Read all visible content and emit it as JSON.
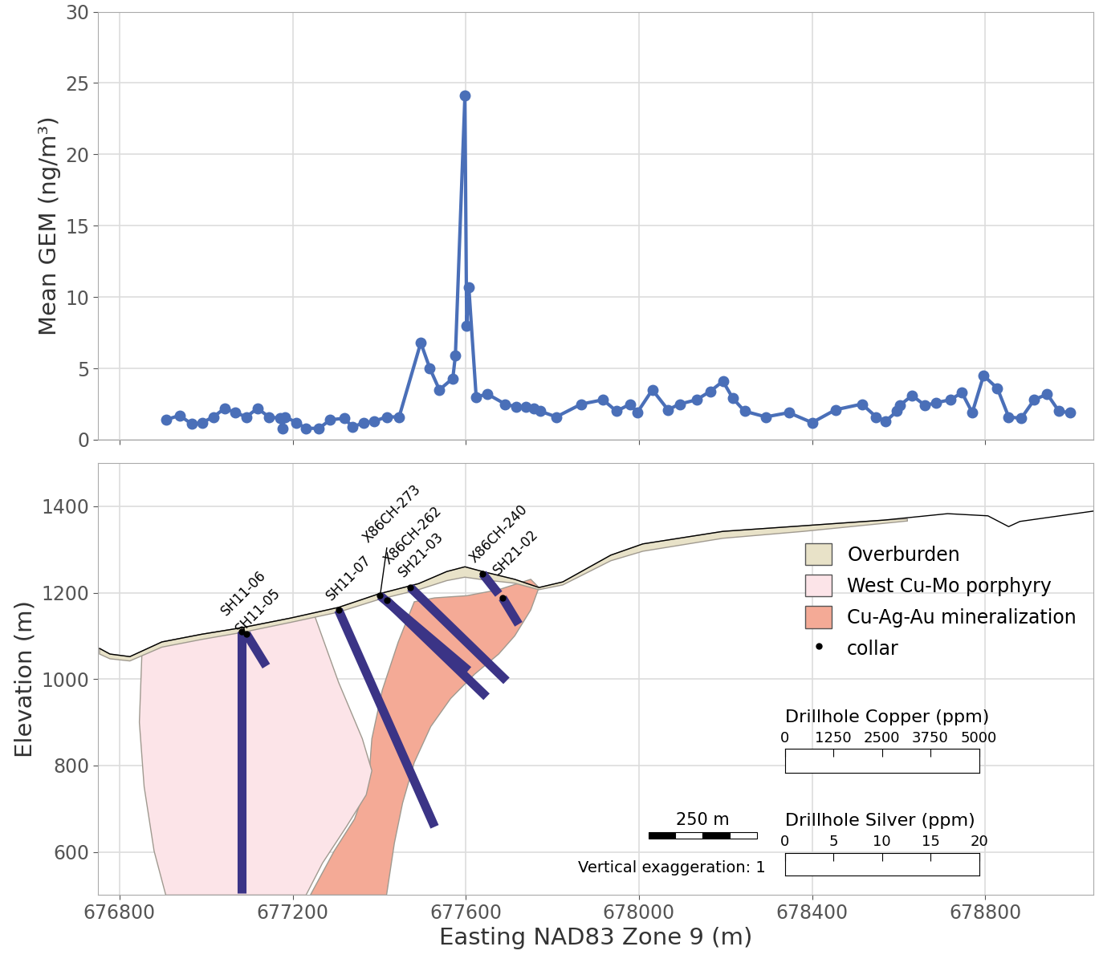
{
  "chart_data": [
    {
      "type": "line",
      "ylabel": "Mean GEM (ng/m³)",
      "x": [
        676907,
        676939,
        676967,
        676991,
        677017,
        677043,
        677068,
        677093,
        677119,
        677145,
        677172,
        677176,
        677183,
        677209,
        677231,
        677261,
        677287,
        677319,
        677339,
        677365,
        677389,
        677417,
        677446,
        677496,
        677517,
        677539,
        677570,
        677576,
        677598,
        677602,
        677607,
        677624,
        677650,
        677691,
        677717,
        677739,
        677757,
        677772,
        677809,
        677867,
        677917,
        677948,
        677980,
        677996,
        678031,
        678067,
        678094,
        678133,
        678165,
        678194,
        678217,
        678244,
        678293,
        678346,
        678400,
        678454,
        678515,
        678548,
        678570,
        678596,
        678602,
        678631,
        678661,
        678687,
        678719,
        678746,
        678770,
        678796,
        678828,
        678854,
        678883,
        678913,
        678943,
        678970,
        678996
      ],
      "values": [
        1.4,
        1.7,
        1.1,
        1.2,
        1.6,
        2.2,
        1.9,
        1.6,
        2.2,
        1.6,
        1.5,
        0.8,
        1.6,
        1.2,
        0.8,
        0.8,
        1.4,
        1.5,
        0.9,
        1.2,
        1.3,
        1.6,
        1.6,
        6.8,
        5.0,
        3.5,
        4.3,
        5.9,
        24.1,
        8.0,
        10.7,
        3.0,
        3.2,
        2.5,
        2.3,
        2.3,
        2.2,
        2.0,
        1.6,
        2.5,
        2.8,
        2.0,
        2.5,
        1.9,
        3.5,
        2.1,
        2.5,
        2.8,
        3.4,
        4.1,
        2.9,
        2.0,
        1.6,
        1.9,
        1.2,
        2.1,
        2.5,
        1.6,
        1.3,
        2.0,
        2.4,
        3.1,
        2.4,
        2.6,
        2.8,
        3.3,
        1.9,
        4.5,
        3.6,
        1.6,
        1.5,
        2.8,
        3.2,
        2.0,
        1.9
      ],
      "color": "#4a6fb8",
      "marker": "o",
      "xlim": [
        676750,
        679050
      ],
      "ylim": [
        0,
        30
      ],
      "xticks": [
        676800,
        677200,
        677600,
        678000,
        678400,
        678800
      ],
      "yticks": [
        0,
        5,
        10,
        15,
        20,
        25,
        30
      ],
      "grid": true,
      "tick_labels": "y"
    },
    {
      "type": "cross_section",
      "xlabel": "Easting NAD83 Zone 9 (m)",
      "ylabel": "Elevation (m)",
      "xlim": [
        676750,
        679050
      ],
      "ylim": [
        500,
        1500
      ],
      "xticks": [
        676800,
        677200,
        677600,
        678000,
        678400,
        678800
      ],
      "yticks": [
        600,
        800,
        1000,
        1200,
        1400
      ],
      "grid": true,
      "legend": "right",
      "topography": {
        "color": "#000000",
        "x": [
          676754,
          676778,
          676824,
          676898,
          676991,
          677083,
          677194,
          677306,
          677398,
          677491,
          677556,
          677598,
          677639,
          677713,
          677769,
          677824,
          677935,
          678009,
          678194,
          678380,
          678565,
          678713,
          678806,
          678854,
          678880,
          679050
        ],
        "y": [
          1071,
          1058,
          1052,
          1086,
          1104,
          1119,
          1141,
          1166,
          1197,
          1221,
          1249,
          1260,
          1249,
          1231,
          1212,
          1225,
          1287,
          1313,
          1342,
          1355,
          1368,
          1383,
          1378,
          1353,
          1365,
          1389
        ]
      },
      "polygons": [
        {
          "name": "Overburden",
          "color": "#e8e2c8",
          "x": [
            676754,
            676778,
            676824,
            676898,
            676991,
            677083,
            677194,
            677306,
            677398,
            677491,
            677556,
            677598,
            677639,
            677713,
            677769,
            677824,
            677935,
            678009,
            678194,
            678380,
            678565,
            678620,
            678620,
            678380,
            678194,
            678009,
            677935,
            677824,
            677769,
            677713,
            677639,
            677598,
            677556,
            677491,
            677398,
            677306,
            677194,
            677083,
            676991,
            676898,
            676824,
            676778,
            676754
          ],
          "y": [
            1071,
            1058,
            1052,
            1086,
            1104,
            1119,
            1141,
            1166,
            1197,
            1221,
            1249,
            1260,
            1249,
            1231,
            1212,
            1225,
            1287,
            1313,
            1342,
            1355,
            1368,
            1371,
            1366,
            1342,
            1326,
            1296,
            1274,
            1218,
            1207,
            1222,
            1230,
            1236,
            1228,
            1207,
            1184,
            1155,
            1131,
            1108,
            1092,
            1074,
            1042,
            1047,
            1058
          ]
        },
        {
          "name": "West Cu-Mo porphyry",
          "color": "#fce4e8",
          "x": [
            676852,
            676898,
            676991,
            677083,
            677194,
            677250,
            677306,
            677361,
            677383,
            677370,
            677324,
            677269,
            677231,
            676907,
            676880,
            676857,
            676846
          ],
          "y": [
            1063,
            1086,
            1104,
            1119,
            1141,
            1149,
            993,
            862,
            788,
            732,
            658,
            574,
            500,
            500,
            602,
            751,
            900
          ]
        },
        {
          "name": "Cu-Ag-Au mineralization",
          "color": "#f4aa96",
          "x": [
            677241,
            677296,
            677343,
            677376,
            677383,
            677407,
            677444,
            677481,
            677528,
            677602,
            677676,
            677750,
            677769,
            677750,
            677713,
            677676,
            677620,
            677565,
            677519,
            677481,
            677454,
            677435,
            677417
          ],
          "y": [
            500,
            602,
            676,
            769,
            862,
            974,
            1086,
            1179,
            1188,
            1193,
            1207,
            1231,
            1212,
            1160,
            1100,
            1058,
            1011,
            955,
            890,
            807,
            713,
            620,
            500
          ]
        }
      ],
      "drillholes": [
        {
          "name": "SH11-06",
          "color": "#3b3486",
          "x": [
            677083,
            677083
          ],
          "y": [
            1110,
            505
          ]
        },
        {
          "name": "SH11-05",
          "color": "#3b3486",
          "x": [
            677093,
            677139
          ],
          "y": [
            1105,
            1030
          ]
        },
        {
          "name": "SH11-07",
          "color": "#3b3486",
          "x": [
            677306,
            677528
          ],
          "y": [
            1160,
            658
          ]
        },
        {
          "name": "X86CH-273",
          "color": "#3b3486",
          "x": [
            677402,
            677606
          ],
          "y": [
            1193,
            1020
          ]
        },
        {
          "name": "X86CH-262",
          "color": "#3b3486",
          "x": [
            677417,
            677648
          ],
          "y": [
            1182,
            959
          ]
        },
        {
          "name": "SH21-03",
          "color": "#3b3486",
          "x": [
            677472,
            677694
          ],
          "y": [
            1212,
            996
          ]
        },
        {
          "name": "X86CH-240",
          "color": "#3b3486",
          "x": [
            677639,
            677676
          ],
          "y": [
            1244,
            1197
          ]
        },
        {
          "name": "SH21-02",
          "color": "#3b3486",
          "x": [
            677685,
            677722
          ],
          "y": [
            1188,
            1127
          ]
        }
      ],
      "collar": {
        "name": "collar",
        "marker": "o",
        "color": "#000000"
      },
      "color_scales": [
        {
          "title": "Drillhole Copper (ppm)",
          "xlim": [
            0,
            5000
          ],
          "xticks": [
            0,
            1250,
            2500,
            3750,
            5000
          ]
        },
        {
          "title": "Drillhole Silver (ppm)",
          "xlim": [
            0,
            20
          ],
          "xticks": [
            0,
            5,
            10,
            15,
            20
          ]
        }
      ],
      "scale_bar": {
        "label": "250 m",
        "length": 250
      },
      "annotations": [
        "Vertical exaggeration: 1"
      ]
    }
  ]
}
